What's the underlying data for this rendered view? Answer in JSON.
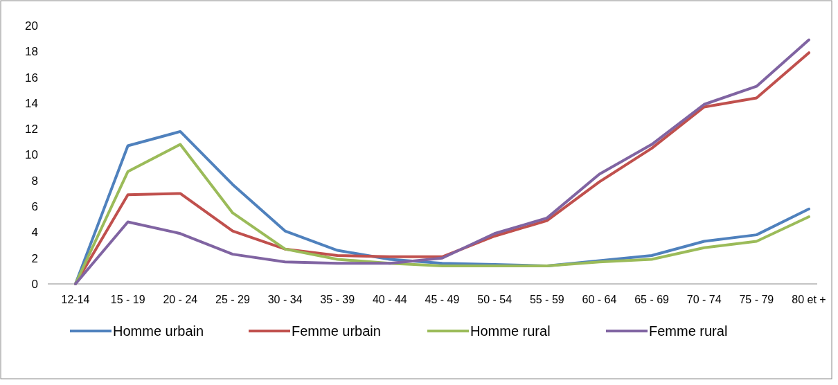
{
  "chart_data": {
    "type": "line",
    "categories": [
      "12-14",
      "15 - 19",
      "20 - 24",
      "25 - 29",
      "30 - 34",
      "35 - 39",
      "40 - 44",
      "45 - 49",
      "50 - 54",
      "55 - 59",
      "60 - 64",
      "65 - 69",
      "70 - 74",
      "75 - 79",
      "80  et +"
    ],
    "series": [
      {
        "name": "Homme urbain",
        "color": "#4f81bd",
        "values": [
          0,
          10.7,
          11.8,
          7.7,
          4.1,
          2.6,
          1.9,
          1.6,
          1.5,
          1.4,
          1.8,
          2.2,
          3.3,
          3.8,
          5.8
        ]
      },
      {
        "name": "Femme urbain",
        "color": "#c0504d",
        "values": [
          0,
          6.9,
          7.0,
          4.1,
          2.7,
          2.2,
          2.1,
          2.1,
          3.7,
          4.9,
          7.9,
          10.5,
          13.7,
          14.4,
          17.9
        ]
      },
      {
        "name": "Homme rural",
        "color": "#9bbb59",
        "values": [
          0,
          8.7,
          10.8,
          5.5,
          2.7,
          1.9,
          1.6,
          1.4,
          1.4,
          1.4,
          1.7,
          1.9,
          2.8,
          3.3,
          5.2
        ]
      },
      {
        "name": "Femme rural",
        "color": "#8064a2",
        "values": [
          0,
          4.8,
          3.9,
          2.3,
          1.7,
          1.6,
          1.6,
          2.0,
          3.9,
          5.1,
          8.5,
          10.8,
          13.9,
          15.3,
          18.9
        ]
      }
    ],
    "ylim": [
      0,
      20
    ],
    "yticks": [
      0,
      2,
      4,
      6,
      8,
      10,
      12,
      14,
      16,
      18,
      20
    ],
    "legend": "bottom",
    "marker": "none",
    "line_style": "solid",
    "grid": false
  }
}
